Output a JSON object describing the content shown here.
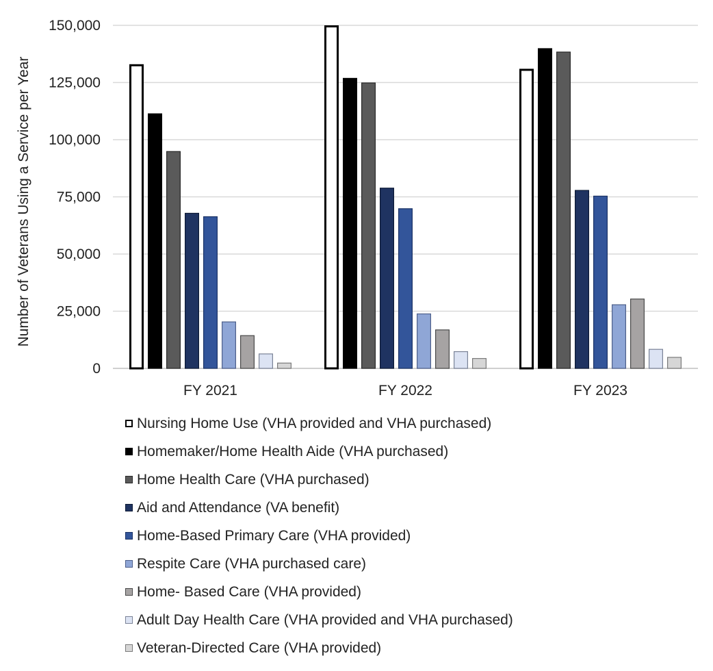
{
  "chart_data": {
    "type": "bar",
    "title": "",
    "xlabel": "",
    "ylabel": "Number of Veterans Using a Service per Year",
    "ylim": [
      0,
      150000
    ],
    "yticks": [
      0,
      25000,
      50000,
      75000,
      100000,
      125000,
      150000
    ],
    "ytick_labels": [
      "0",
      "25,000",
      "50,000",
      "75,000",
      "100,000",
      "125,000",
      "150,000"
    ],
    "grid": true,
    "legend_position": "bottom",
    "categories": [
      "FY 2021",
      "FY 2022",
      "FY 2023"
    ],
    "series": [
      {
        "name": "Nursing Home Use (VHA provided and VHA purchased)",
        "fill": "#ffffff",
        "stroke": "#000000",
        "values": [
          133000,
          150000,
          131000
        ]
      },
      {
        "name": "Homemaker/Home Health Aide (VHA purchased)",
        "fill": "#000000",
        "stroke": "#000000",
        "values": [
          111500,
          127000,
          140000
        ]
      },
      {
        "name": "Home Health Care (VHA purchased)",
        "fill": "#5a5a5a",
        "stroke": "#2a2a2a",
        "values": [
          95000,
          125000,
          138500
        ]
      },
      {
        "name": "Aid and Attendance (VA benefit)",
        "fill": "#1f3361",
        "stroke": "#0d1a35",
        "values": [
          68000,
          79000,
          78000
        ]
      },
      {
        "name": "Home-Based Primary Care (VHA provided)",
        "fill": "#33559a",
        "stroke": "#1c3366",
        "values": [
          66500,
          70000,
          75500
        ]
      },
      {
        "name": "Respite Care (VHA purchased care)",
        "fill": "#8fa6d6",
        "stroke": "#4d5f8a",
        "values": [
          20500,
          24000,
          28000
        ]
      },
      {
        "name": "Home- Based Care (VHA provided)",
        "fill": "#a6a3a3",
        "stroke": "#4a4a4a",
        "values": [
          14500,
          17000,
          30500
        ]
      },
      {
        "name": "Adult Day Health Care (VHA provided and VHA purchased)",
        "fill": "#dce3f3",
        "stroke": "#7a8296",
        "values": [
          6500,
          7500,
          8500
        ]
      },
      {
        "name": "Veteran-Directed Care (VHA provided)",
        "fill": "#d6d6d6",
        "stroke": "#7a7a7a",
        "values": [
          2500,
          4500,
          5000
        ]
      }
    ]
  }
}
